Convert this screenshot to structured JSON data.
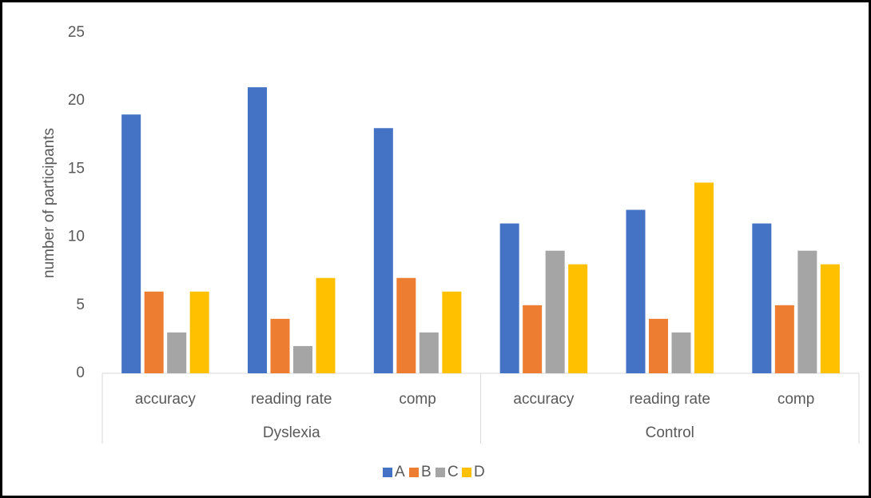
{
  "chart_data": {
    "type": "bar",
    "y_label": "number of participants",
    "categories": [
      "accuracy",
      "reading rate",
      "comp",
      "accuracy",
      "reading rate",
      "comp"
    ],
    "groups": [
      "Dyslexia",
      "Control"
    ],
    "series": [
      {
        "name": "A",
        "color": "#4472c4",
        "values": [
          19,
          21,
          18,
          11,
          12,
          11
        ]
      },
      {
        "name": "B",
        "color": "#ed7d31",
        "values": [
          6,
          4,
          7,
          5,
          4,
          5
        ]
      },
      {
        "name": "C",
        "color": "#a5a5a5",
        "values": [
          3,
          2,
          3,
          9,
          3,
          9
        ]
      },
      {
        "name": "D",
        "color": "#ffc000",
        "values": [
          6,
          7,
          6,
          8,
          14,
          8
        ]
      }
    ],
    "ylim": [
      0,
      25
    ],
    "yticks": [
      0,
      5,
      10,
      15,
      20,
      25
    ],
    "grid": false,
    "legend": "bottom"
  }
}
